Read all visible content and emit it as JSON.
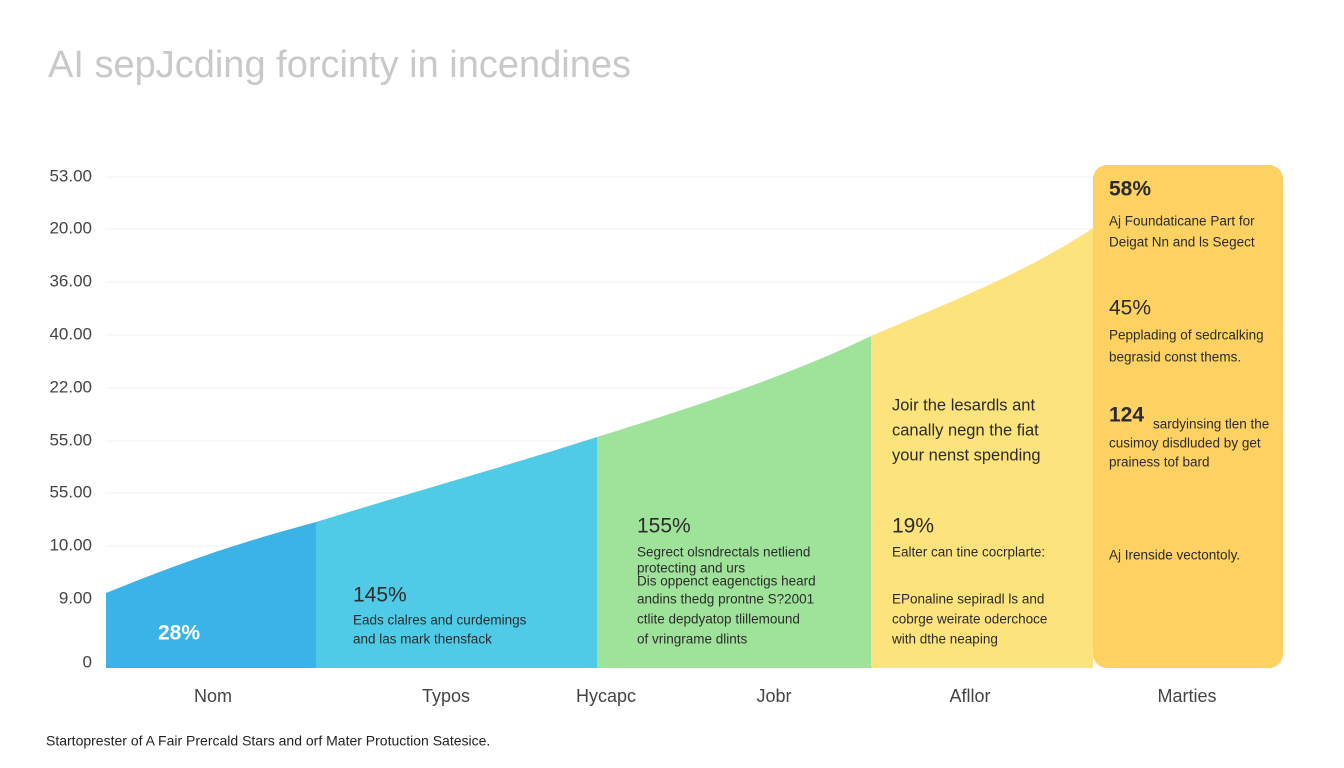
{
  "title": "AI sepJcding forcinty in incendines",
  "y_axis_labels": [
    "53.00",
    "20.00",
    "36.00",
    "40.00",
    "22.00",
    "55.00",
    "55.00",
    "10.00",
    "9.00",
    "0"
  ],
  "x_axis_labels": [
    "Nom",
    "Typos",
    "Hycapc",
    "Jobr",
    "Afllor",
    "Marties"
  ],
  "segments": [
    {
      "stat": "28%"
    },
    {
      "stat": "145%",
      "lines": [
        "Eads clalres and curdemings",
        "and las mark thensfack"
      ]
    },
    {
      "stat": "155%",
      "lines": [
        "Segrect olsndrectals netliend",
        "protecting and urs",
        "Dis oppenct eagenctigs heard",
        "andins thedg prontne S?2001",
        "ctlite depdyatop tlillemound",
        "of vringrame dlints"
      ]
    },
    {
      "intro": [
        "Joir the lesardls ant",
        "canally negn the fiat",
        "your nenst spending"
      ],
      "stat": "19%",
      "lines": [
        "Ealter can tine cocrplarte:",
        "EPonaline sepiradl ls and",
        "cobrge weirate oderchoce",
        "with dthe neaping"
      ]
    },
    {
      "blocks": [
        {
          "stat": "58%",
          "lines": [
            "Aj Foundaticane Part for",
            "Deigat Nn and ls Segect"
          ]
        },
        {
          "stat": "45%",
          "lines": [
            "Pepplading of sedrcalking",
            "begrasid const thems."
          ]
        },
        {
          "stat": "124",
          "lines": [
            "sardyinsing tlen the",
            "cusimoy disdluded by get",
            "prainess tof bard"
          ]
        },
        {
          "lines": [
            "Aj Irenside vectontoly."
          ]
        }
      ]
    }
  ],
  "footnote": "Startoprester of A Fair Prercald Stars and orf Mater Protuction Satesice."
}
